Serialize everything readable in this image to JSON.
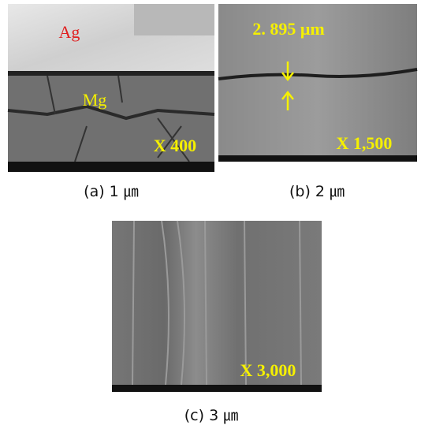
{
  "panels": [
    {
      "image_labels": [
        "Ag",
        "Mg",
        "X 400"
      ],
      "caption": "(a) 1 ㎛"
    },
    {
      "image_labels": [
        "2. 895 μm",
        "X 1,500"
      ],
      "caption": "(b) 2 ㎛"
    },
    {
      "image_labels": [
        "X 3,000"
      ],
      "caption": "(c) 3 ㎛"
    }
  ]
}
